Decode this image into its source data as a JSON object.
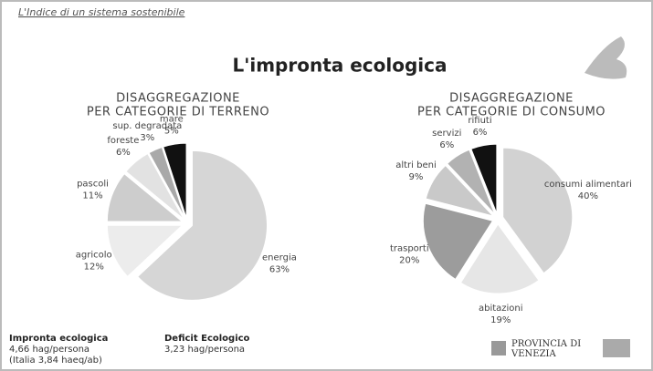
{
  "header": "L'Indice di un sistema sostenibile",
  "title": "L'impronta ecologica",
  "chart_data": [
    {
      "type": "pie",
      "title": [
        "DISAGGREGAZIONE",
        "PER CATEGORIE  DI TERRENO"
      ],
      "categories": [
        "energia",
        "agricolo",
        "pascoli",
        "foreste",
        "sup. degradata",
        "mare"
      ],
      "values": [
        63,
        12,
        11,
        6,
        3,
        5
      ],
      "value_labels": [
        "63%",
        "12%",
        "11%",
        "6%",
        "3%",
        "5%"
      ],
      "colors": [
        "#d6d6d6",
        "#ececec",
        "#cdcdcd",
        "#e2e2e2",
        "#a9a9a9",
        "#111111"
      ]
    },
    {
      "type": "pie",
      "title": [
        "DISAGGREGAZIONE",
        "PER CATEGORIE  DI  CONSUMO"
      ],
      "categories": [
        "consumi alimentari",
        "abitazioni",
        "trasporti",
        "altri beni",
        "servizi",
        "rifiuti"
      ],
      "values": [
        40,
        19,
        20,
        9,
        6,
        6
      ],
      "value_labels": [
        "40%",
        "19%",
        "20%",
        "9%",
        "6%",
        "6%"
      ],
      "colors": [
        "#d2d2d2",
        "#e6e6e6",
        "#9c9c9c",
        "#c9c9c9",
        "#b2b2b2",
        "#111111"
      ]
    }
  ],
  "footer": {
    "footprint_label": "Impronta ecologica",
    "footprint_value": "4,66 hag/persona",
    "footprint_italy": "(Italia 3,84 haeq/ab)",
    "deficit_label": "Deficit Ecologico",
    "deficit_value": "3,23 hag/persona",
    "province": "PROVINCIA DI VENEZIA"
  }
}
